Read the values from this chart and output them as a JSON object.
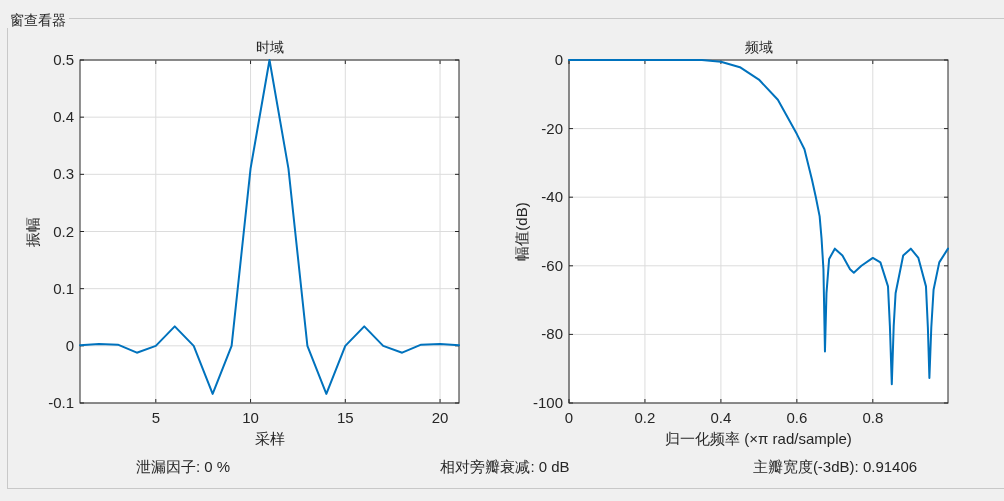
{
  "chart_data": [
    {
      "type": "line",
      "title": "时域",
      "xlabel": "采样",
      "ylabel": "振幅",
      "x": [
        1,
        2,
        3,
        4,
        5,
        6,
        7,
        8,
        9,
        10,
        11,
        12,
        13,
        14,
        15,
        16,
        17,
        18,
        19,
        20,
        21
      ],
      "series": [
        {
          "color": "#0072bd",
          "values": [
            0.001,
            0.003,
            0.002,
            -0.012,
            0,
            0.034,
            0,
            -0.084,
            0,
            0.31,
            0.5,
            0.31,
            0,
            -0.084,
            0,
            0.034,
            0,
            -0.012,
            0.002,
            0.003,
            0.001
          ]
        }
      ],
      "xlim": [
        1,
        21
      ],
      "xticks": [
        5,
        10,
        15,
        20
      ],
      "ylim": [
        -0.1,
        0.5
      ],
      "yticks": [
        -0.1,
        0,
        0.1,
        0.2,
        0.3,
        0.4,
        0.5
      ],
      "grid": true,
      "marker": "none",
      "line_style": "solid",
      "annotations": [
        "窗查看器",
        "泄漏因子: 0 %",
        "相对旁瓣衰减: 0 dB"
      ]
    },
    {
      "type": "line",
      "title": "频域",
      "xlabel": "归一化频率  (×π rad/sample)",
      "ylabel": "幅值(dB)",
      "x": [
        0,
        0.35,
        0.4,
        0.45,
        0.5,
        0.55,
        0.6,
        0.62,
        0.64,
        0.65,
        0.66,
        0.665,
        0.67,
        0.674,
        0.678,
        0.685,
        0.7,
        0.72,
        0.74,
        0.75,
        0.77,
        0.8,
        0.82,
        0.84,
        0.845,
        0.85,
        0.855,
        0.86,
        0.88,
        0.9,
        0.92,
        0.94,
        0.945,
        0.949,
        0.954,
        0.96,
        0.975,
        0.998
      ],
      "series": [
        {
          "color": "#0072bd",
          "values": [
            0,
            0,
            -0.5,
            -2.1,
            -5.7,
            -11.6,
            -21.6,
            -26,
            -35,
            -40,
            -45.6,
            -52,
            -61,
            -85,
            -68,
            -58,
            -55,
            -57,
            -61,
            -62,
            -60,
            -57.7,
            -59,
            -66,
            -77.6,
            -94.5,
            -77.6,
            -68,
            -57,
            -55,
            -57.7,
            -66,
            -78,
            -92.7,
            -78,
            -67,
            -59,
            -55
          ]
        }
      ],
      "xlim": [
        0,
        0.998
      ],
      "xticks": [
        0,
        0.2,
        0.4,
        0.6,
        0.8
      ],
      "ylim": [
        -100,
        0
      ],
      "yticks": [
        -100,
        -80,
        -60,
        -40,
        -20,
        0
      ],
      "grid": true,
      "marker": "none",
      "line_style": "solid",
      "annotations": [
        "主瓣宽度(-3dB): 0.91406"
      ]
    }
  ]
}
